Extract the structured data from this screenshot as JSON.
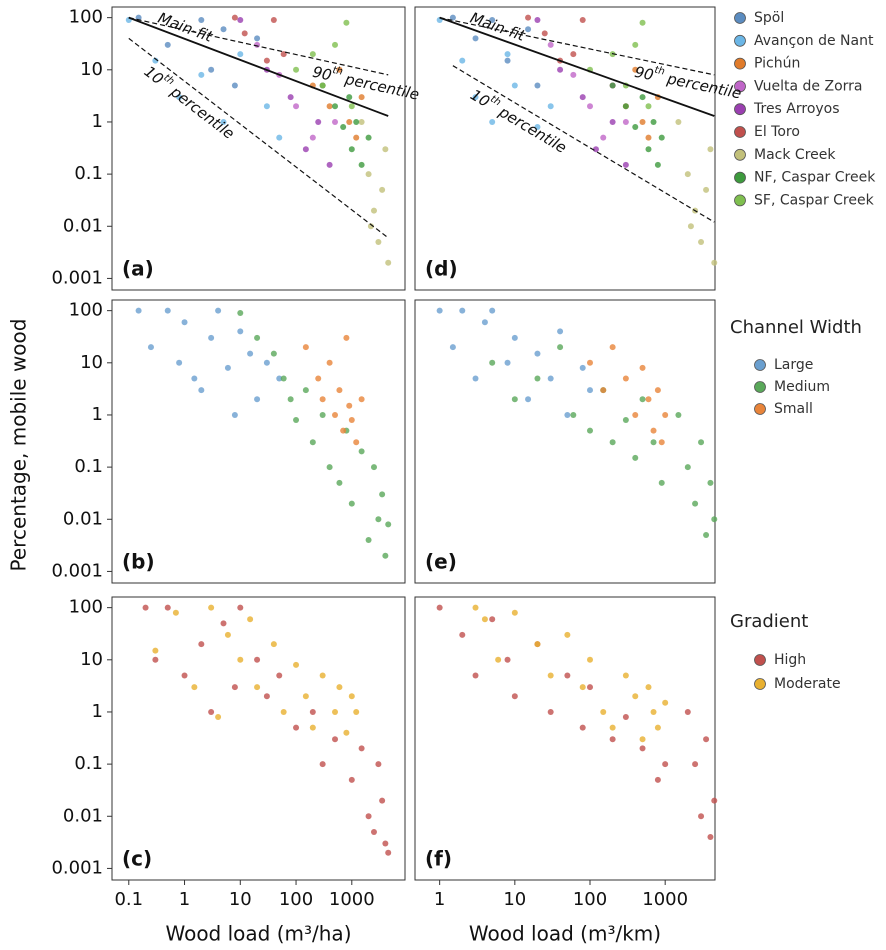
{
  "chart_data": [
    {
      "type": "scatter",
      "label": "(a)",
      "xscale": "log",
      "yscale": "log",
      "xlim": [
        0.05,
        9000
      ],
      "ylim": [
        0.0006,
        160
      ],
      "yticks": [
        0.001,
        0.01,
        0.1,
        1,
        10,
        100
      ],
      "series": [
        {
          "name": "Spöl",
          "color": "#5b8cc0",
          "x": [
            0.15,
            0.5,
            2,
            5,
            3,
            20,
            8
          ],
          "values": [
            100,
            30,
            90,
            60,
            10,
            40,
            5
          ]
        },
        {
          "name": "Avançon de Nant",
          "color": "#6bb6e6",
          "x": [
            0.1,
            0.3,
            0.8,
            2,
            5,
            10,
            30,
            50
          ],
          "values": [
            90,
            15,
            3,
            8,
            1,
            20,
            2,
            0.5
          ]
        },
        {
          "name": "Pichún",
          "color": "#e07b2a",
          "x": [
            200,
            400,
            600,
            900,
            1200,
            1500
          ],
          "values": [
            5,
            2,
            10,
            1,
            0.5,
            3
          ]
        },
        {
          "name": "Vuelta de Zorra",
          "color": "#c066c8",
          "x": [
            20,
            50,
            100,
            200,
            300,
            500
          ],
          "values": [
            30,
            8,
            2,
            0.5,
            5,
            1
          ]
        },
        {
          "name": "Tres Arroyos",
          "color": "#9a3fb0",
          "x": [
            10,
            30,
            80,
            150,
            250,
            400
          ],
          "values": [
            90,
            10,
            3,
            0.3,
            1,
            0.15
          ]
        },
        {
          "name": "El Toro",
          "color": "#c0504d",
          "x": [
            8,
            12,
            30,
            60,
            40
          ],
          "values": [
            100,
            50,
            15,
            20,
            90
          ]
        },
        {
          "name": "Mack Creek",
          "color": "#c2c07a",
          "x": [
            1500,
            2000,
            2500,
            3000,
            3500,
            4000,
            4500,
            2200
          ],
          "values": [
            1,
            0.1,
            0.02,
            0.005,
            0.05,
            0.3,
            0.002,
            0.01
          ]
        },
        {
          "name": "NF, Caspar Creek",
          "color": "#3d9a3d",
          "x": [
            300,
            500,
            700,
            900,
            1000,
            1200,
            1500,
            2000
          ],
          "values": [
            5,
            2,
            0.8,
            3,
            0.3,
            1,
            0.15,
            0.5
          ]
        },
        {
          "name": "SF, Caspar Creek",
          "color": "#7fbf4f",
          "x": [
            100,
            200,
            300,
            500,
            800,
            1000
          ],
          "values": [
            10,
            20,
            5,
            30,
            80,
            2
          ]
        }
      ],
      "lines": [
        {
          "label": "Main-fit",
          "dashed": false,
          "x": [
            0.1,
            4500
          ],
          "values": [
            100,
            1.3
          ]
        },
        {
          "label": "90",
          "label_sup": "th",
          "label_rest": "percentile",
          "dashed": true,
          "x": [
            0.1,
            4500
          ],
          "values": [
            100,
            8
          ]
        },
        {
          "label": "10",
          "label_sup": "th",
          "label_rest": "percentile",
          "dashed": true,
          "x": [
            0.1,
            4500
          ],
          "values": [
            40,
            0.006
          ]
        }
      ]
    },
    {
      "type": "scatter",
      "label": "(b)",
      "xscale": "log",
      "yscale": "log",
      "xlim": [
        0.05,
        9000
      ],
      "ylim": [
        0.0006,
        160
      ],
      "yticks": [
        0.001,
        0.01,
        0.1,
        1,
        10,
        100
      ],
      "ylabel": "Percentage, mobile wood",
      "legend_title": "Channel Width",
      "series": [
        {
          "name": "Large",
          "color": "#6a9fcf",
          "x": [
            0.15,
            0.25,
            0.5,
            0.8,
            1,
            1.5,
            2,
            3,
            4,
            6,
            8,
            10,
            15,
            20,
            30,
            50
          ],
          "values": [
            100,
            20,
            100,
            10,
            60,
            5,
            3,
            30,
            100,
            8,
            1,
            40,
            15,
            2,
            10,
            5
          ]
        },
        {
          "name": "Medium",
          "color": "#5aa85a",
          "x": [
            10,
            20,
            40,
            60,
            80,
            100,
            150,
            200,
            300,
            400,
            600,
            800,
            1000,
            1500,
            2000,
            2500,
            3000,
            3500,
            4000,
            4500
          ],
          "values": [
            90,
            30,
            15,
            5,
            2,
            0.8,
            3,
            0.3,
            1,
            0.1,
            0.05,
            0.5,
            0.02,
            0.2,
            0.004,
            0.1,
            0.01,
            0.03,
            0.002,
            0.008
          ]
        },
        {
          "name": "Small",
          "color": "#e8843a",
          "x": [
            150,
            250,
            300,
            400,
            500,
            600,
            700,
            800,
            900,
            1000,
            1200,
            1500
          ],
          "values": [
            20,
            5,
            2,
            10,
            1,
            3,
            0.5,
            30,
            1.5,
            0.8,
            0.3,
            2
          ]
        }
      ]
    },
    {
      "type": "scatter",
      "label": "(c)",
      "xscale": "log",
      "yscale": "log",
      "xlim": [
        0.05,
        9000
      ],
      "ylim": [
        0.0006,
        160
      ],
      "yticks": [
        0.001,
        0.01,
        0.1,
        1,
        10,
        100
      ],
      "xticks": [
        0.1,
        1,
        10,
        100,
        1000
      ],
      "xlabel": "Wood load (m³/ha)",
      "legend_title": "Gradient",
      "series": [
        {
          "name": "High",
          "color": "#c0504d",
          "x": [
            0.2,
            0.3,
            0.5,
            1,
            2,
            3,
            5,
            8,
            10,
            20,
            30,
            50,
            100,
            200,
            300,
            500,
            1000,
            1500,
            2000,
            2500,
            3000,
            3500,
            4000,
            4500
          ],
          "values": [
            100,
            10,
            100,
            5,
            20,
            1,
            50,
            3,
            100,
            10,
            2,
            5,
            0.5,
            1,
            0.1,
            0.3,
            0.05,
            0.2,
            0.01,
            0.005,
            0.1,
            0.02,
            0.003,
            0.002
          ]
        },
        {
          "name": "Moderate",
          "color": "#e8b030",
          "x": [
            0.3,
            0.7,
            1.5,
            3,
            4,
            6,
            10,
            15,
            20,
            40,
            60,
            100,
            150,
            200,
            300,
            500,
            600,
            800,
            1000,
            1200
          ],
          "values": [
            15,
            80,
            3,
            100,
            0.8,
            30,
            10,
            60,
            3,
            20,
            1,
            8,
            2,
            0.5,
            5,
            1,
            3,
            0.4,
            2,
            1
          ]
        }
      ]
    },
    {
      "type": "scatter",
      "label": "(d)",
      "xscale": "log",
      "yscale": "log",
      "xlim": [
        0.47,
        4600
      ],
      "ylim": [
        0.0006,
        160
      ],
      "series": [
        {
          "color": "#5b8cc0",
          "x": [
            1.5,
            3,
            5,
            8,
            15,
            20
          ],
          "values": [
            100,
            40,
            90,
            15,
            60,
            5
          ]
        },
        {
          "color": "#6bb6e6",
          "x": [
            1,
            2,
            3,
            5,
            8,
            10,
            20,
            30
          ],
          "values": [
            90,
            15,
            3,
            1,
            20,
            5,
            0.8,
            2
          ]
        },
        {
          "color": "#e07b2a",
          "x": [
            200,
            300,
            400,
            500,
            600,
            800
          ],
          "values": [
            5,
            2,
            10,
            1,
            0.5,
            3
          ]
        },
        {
          "color": "#c066c8",
          "x": [
            30,
            60,
            100,
            150,
            200,
            300
          ],
          "values": [
            30,
            8,
            2,
            0.5,
            5,
            1
          ]
        },
        {
          "color": "#9a3fb0",
          "x": [
            20,
            40,
            80,
            120,
            200,
            300
          ],
          "values": [
            90,
            10,
            3,
            0.3,
            1,
            0.15
          ]
        },
        {
          "color": "#c0504d",
          "x": [
            15,
            25,
            40,
            60,
            80
          ],
          "values": [
            100,
            50,
            15,
            20,
            90
          ]
        },
        {
          "color": "#c2c07a",
          "x": [
            1500,
            2000,
            2500,
            3000,
            3500,
            4000,
            4500,
            2200
          ],
          "values": [
            1,
            0.1,
            0.02,
            0.005,
            0.05,
            0.3,
            0.002,
            0.01
          ]
        },
        {
          "color": "#3d9a3d",
          "x": [
            200,
            300,
            400,
            500,
            600,
            700,
            800,
            900
          ],
          "values": [
            5,
            2,
            0.8,
            3,
            0.3,
            1,
            0.15,
            0.5
          ]
        },
        {
          "color": "#7fbf4f",
          "x": [
            100,
            200,
            300,
            400,
            500,
            600
          ],
          "values": [
            10,
            20,
            5,
            30,
            80,
            2
          ]
        }
      ],
      "lines": [
        {
          "label": "Main-fit",
          "dashed": false,
          "x": [
            1,
            4500
          ],
          "values": [
            100,
            1.3
          ]
        },
        {
          "label": "90",
          "label_sup": "th",
          "label_rest": "percentile",
          "dashed": true,
          "x": [
            1,
            4500
          ],
          "values": [
            100,
            8
          ]
        },
        {
          "label": "10",
          "label_sup": "th",
          "label_rest": "percentile",
          "dashed": true,
          "x": [
            1.5,
            4500
          ],
          "values": [
            12,
            0.012
          ]
        }
      ]
    },
    {
      "type": "scatter",
      "label": "(e)",
      "xscale": "log",
      "yscale": "log",
      "xlim": [
        0.47,
        4600
      ],
      "ylim": [
        0.0006,
        160
      ],
      "series": [
        {
          "color": "#6a9fcf",
          "x": [
            1,
            1.5,
            2,
            3,
            4,
            5,
            8,
            10,
            15,
            20,
            30,
            40,
            50,
            80,
            100
          ],
          "values": [
            100,
            20,
            100,
            5,
            60,
            100,
            10,
            30,
            2,
            15,
            5,
            40,
            1,
            8,
            3
          ]
        },
        {
          "color": "#5aa85a",
          "x": [
            5,
            10,
            20,
            40,
            60,
            100,
            150,
            200,
            300,
            400,
            500,
            700,
            900,
            1500,
            2000,
            2500,
            3000,
            3500,
            4000,
            4500
          ],
          "values": [
            10,
            2,
            5,
            20,
            1,
            0.5,
            3,
            0.3,
            0.8,
            0.15,
            2,
            0.3,
            0.05,
            1,
            0.1,
            0.02,
            0.3,
            0.005,
            0.05,
            0.01
          ]
        },
        {
          "color": "#e8843a",
          "x": [
            100,
            150,
            200,
            300,
            400,
            500,
            600,
            700,
            800,
            900,
            1000
          ],
          "values": [
            10,
            3,
            20,
            5,
            1,
            8,
            2,
            0.5,
            3,
            0.3,
            1
          ]
        }
      ]
    },
    {
      "type": "scatter",
      "label": "(f)",
      "xscale": "log",
      "yscale": "log",
      "xlim": [
        0.47,
        4600
      ],
      "ylim": [
        0.0006,
        160
      ],
      "xticks": [
        1,
        10,
        100,
        1000
      ],
      "xlabel": "Wood load (m³/km)",
      "series": [
        {
          "color": "#c0504d",
          "x": [
            1,
            2,
            3,
            5,
            8,
            10,
            20,
            30,
            50,
            80,
            100,
            200,
            300,
            500,
            800,
            1000,
            2000,
            2500,
            3000,
            3500,
            4000,
            4500
          ],
          "values": [
            100,
            30,
            5,
            60,
            10,
            2,
            20,
            1,
            5,
            0.5,
            3,
            0.3,
            0.8,
            0.2,
            0.05,
            0.1,
            1,
            0.1,
            0.01,
            0.3,
            0.004,
            0.02
          ]
        },
        {
          "color": "#e8b030",
          "x": [
            3,
            4,
            6,
            10,
            20,
            30,
            50,
            80,
            100,
            150,
            200,
            300,
            400,
            500,
            600,
            700,
            800,
            1000
          ],
          "values": [
            100,
            60,
            10,
            80,
            20,
            5,
            30,
            3,
            10,
            1,
            0.5,
            5,
            2,
            0.3,
            3,
            1,
            0.5,
            1.5
          ]
        }
      ]
    }
  ]
}
